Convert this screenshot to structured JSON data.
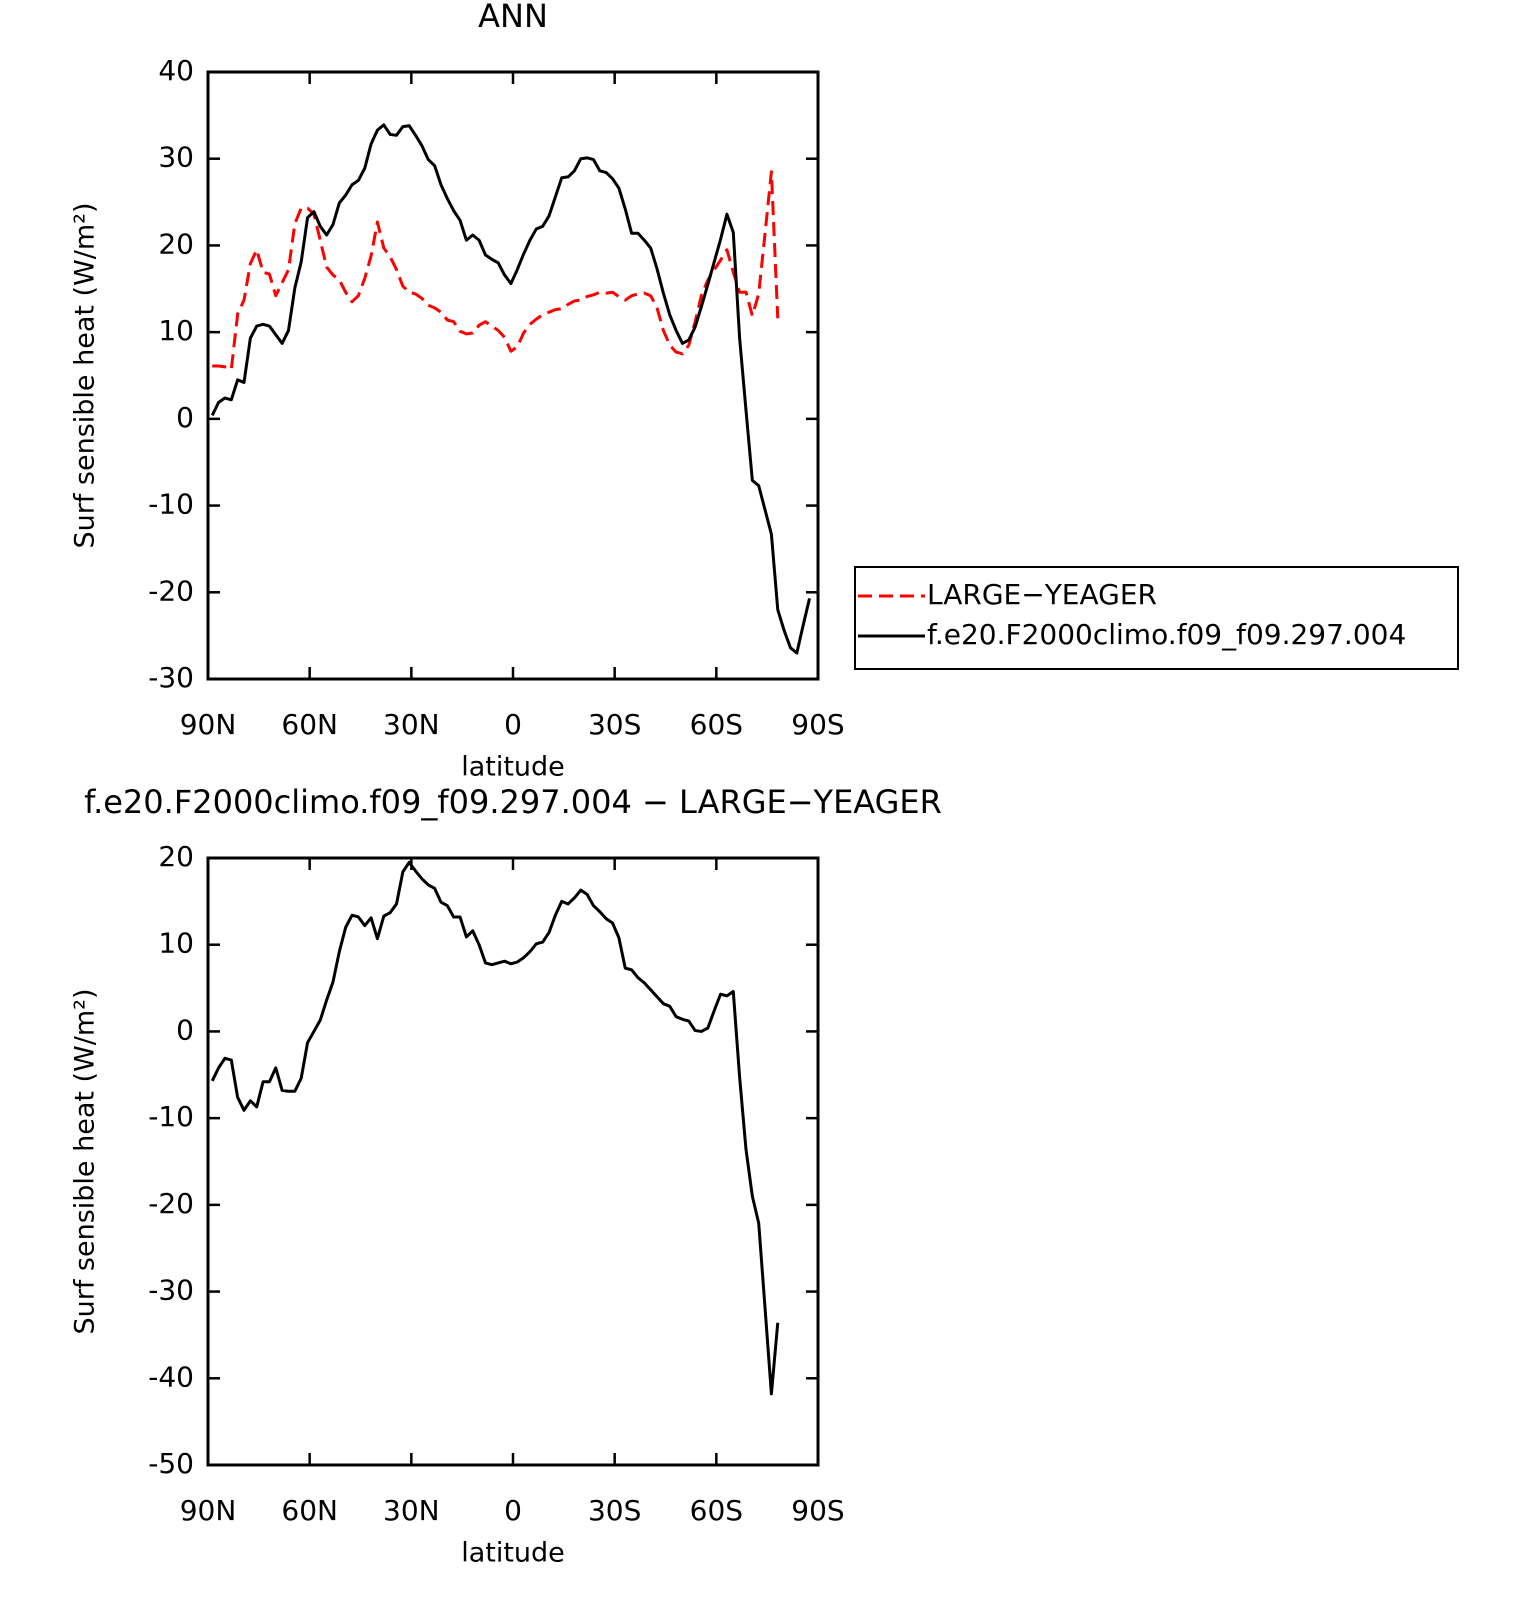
{
  "chart_data": [
    {
      "type": "line",
      "title": "ANN",
      "xlabel": "latitude",
      "ylabel": "Surf sensible heat (W/m²)",
      "xlim": [
        90,
        -90
      ],
      "xticks": [
        {
          "value": 90,
          "label": "90N"
        },
        {
          "value": 60,
          "label": "60N"
        },
        {
          "value": 30,
          "label": "30N"
        },
        0,
        {
          "value": -30,
          "label": "30S"
        },
        {
          "value": -60,
          "label": "60S"
        },
        {
          "value": -90,
          "label": "90S"
        }
      ],
      "ylim": [
        -30,
        40
      ],
      "yticks": [
        -30,
        -20,
        -10,
        0,
        10,
        20,
        30,
        40
      ],
      "legend": "right",
      "x": [
        88.75,
        86.875,
        85,
        83.125,
        81.25,
        79.375,
        77.5,
        75.625,
        73.75,
        71.875,
        70,
        68.125,
        66.25,
        64.375,
        62.5,
        60.625,
        58.75,
        56.875,
        55,
        53.125,
        51.25,
        49.375,
        47.5,
        45.625,
        43.75,
        41.875,
        40,
        38.125,
        36.25,
        34.375,
        32.5,
        30.625,
        28.75,
        26.875,
        25,
        23.125,
        21.25,
        19.375,
        17.5,
        15.625,
        13.75,
        11.875,
        10,
        8.125,
        6.25,
        4.375,
        2.5,
        0.625,
        -1.25,
        -3.125,
        -5,
        -6.875,
        -8.75,
        -10.625,
        -12.5,
        -14.375,
        -16.25,
        -18.125,
        -20,
        -21.875,
        -23.75,
        -25.625,
        -27.5,
        -29.375,
        -31.25,
        -33.125,
        -35,
        -36.875,
        -38.75,
        -40.625,
        -42.5,
        -44.375,
        -46.25,
        -48.125,
        -50,
        -51.875,
        -53.75,
        -55.625,
        -57.5,
        -59.375,
        -61.25,
        -63.125,
        -65,
        -66.875,
        -68.75,
        -70.625,
        -72.5,
        -74.375,
        -76.25,
        -78.125,
        -80,
        -81.875,
        -83.75,
        -85.625,
        -87.5
      ],
      "series": [
        {
          "name": "LARGE−YEAGER",
          "color": "#ff0000",
          "linestyle": "dashed",
          "values": [
            6.1,
            6.1,
            6,
            5.7,
            12.1,
            13.7,
            17.9,
            19.5,
            16.9,
            16.7,
            14.2,
            15.7,
            17.2,
            22.5,
            24.3,
            24.3,
            23.6,
            20.6,
            17.5,
            16.6,
            16,
            14.6,
            13.5,
            14.2,
            16.2,
            18.8,
            22.7,
            19.7,
            18.7,
            17.2,
            15.3,
            14.6,
            14.4,
            13.9,
            13.1,
            12.8,
            12.3,
            11.4,
            11.2,
            10.1,
            9.8,
            9.9,
            10.8,
            11.2,
            10.7,
            10.2,
            9.4,
            7.8,
            8.3,
            9.9,
            10.9,
            11.5,
            12,
            12.3,
            12.6,
            12.7,
            13.2,
            13.6,
            13.7,
            14.1,
            14.3,
            14.6,
            14.5,
            14.6,
            14.1,
            13.7,
            14.2,
            14.4,
            14.5,
            14.2,
            12.8,
            10.2,
            8.5,
            7.7,
            7.5,
            8.5,
            11.2,
            14.3,
            16,
            17.2,
            18.3,
            19.5,
            16.9,
            14.6,
            14.6,
            11.9,
            14.4,
            21.4,
            28.5,
            11.6,
            null,
            null,
            null,
            null,
            null
          ]
        },
        {
          "name": "f.e20.F2000climo.f09_f09.297.004",
          "color": "#000000",
          "linestyle": "solid",
          "values": [
            0.4,
            1.9,
            2.4,
            2.2,
            4.5,
            4.2,
            9.3,
            10.7,
            10.9,
            10.7,
            9.7,
            8.7,
            10.2,
            15.1,
            18.1,
            23.2,
            23.9,
            22.2,
            21.2,
            22.4,
            24.9,
            25.8,
            27,
            27.5,
            28.9,
            31.7,
            33.3,
            33.9,
            32.8,
            32.7,
            33.7,
            33.8,
            32.7,
            31.5,
            29.9,
            29.2,
            27,
            25.4,
            24,
            22.9,
            20.6,
            21.2,
            20.6,
            18.9,
            18.4,
            18,
            16.6,
            15.6,
            17.2,
            19,
            20.6,
            21.9,
            22.2,
            23.4,
            25.6,
            27.8,
            27.9,
            28.6,
            30,
            30.1,
            29.9,
            28.6,
            28.4,
            27.7,
            26.6,
            24.2,
            21.4,
            21.4,
            20.6,
            19.7,
            17.3,
            14.5,
            12,
            10.2,
            8.7,
            9.1,
            10.6,
            13,
            15.5,
            18.1,
            20.7,
            23.6,
            21.5,
            9.3,
            1,
            -7.1,
            -7.7,
            -10.5,
            -13.3,
            -22,
            -24.4,
            -26.4,
            -27,
            -23.8,
            -20.7
          ]
        }
      ]
    },
    {
      "type": "line",
      "title": "f.e20.F2000climo.f09_f09.297.004 − LARGE−YEAGER",
      "xlabel": "latitude",
      "ylabel": "Surf sensible heat (W/m²)",
      "xlim": [
        90,
        -90
      ],
      "xticks": [
        {
          "value": 90,
          "label": "90N"
        },
        {
          "value": 60,
          "label": "60N"
        },
        {
          "value": 30,
          "label": "30N"
        },
        0,
        {
          "value": -30,
          "label": "30S"
        },
        {
          "value": -60,
          "label": "60S"
        },
        {
          "value": -90,
          "label": "90S"
        }
      ],
      "ylim": [
        -50,
        20
      ],
      "yticks": [
        -50,
        -40,
        -30,
        -20,
        -10,
        0,
        10,
        20
      ],
      "x": [
        88.75,
        86.875,
        85,
        83.125,
        81.25,
        79.375,
        77.5,
        75.625,
        73.75,
        71.875,
        70,
        68.125,
        66.25,
        64.375,
        62.5,
        60.625,
        58.75,
        56.875,
        55,
        53.125,
        51.25,
        49.375,
        47.5,
        45.625,
        43.75,
        41.875,
        40,
        38.125,
        36.25,
        34.375,
        32.5,
        30.625,
        28.75,
        26.875,
        25,
        23.125,
        21.25,
        19.375,
        17.5,
        15.625,
        13.75,
        11.875,
        10,
        8.125,
        6.25,
        4.375,
        2.5,
        0.625,
        -1.25,
        -3.125,
        -5,
        -6.875,
        -8.75,
        -10.625,
        -12.5,
        -14.375,
        -16.25,
        -18.125,
        -20,
        -21.875,
        -23.75,
        -25.625,
        -27.5,
        -29.375,
        -31.25,
        -33.125,
        -35,
        -36.875,
        -38.75,
        -40.625,
        -42.5,
        -44.375,
        -46.25,
        -48.125,
        -50,
        -51.875,
        -53.75,
        -55.625,
        -57.5,
        -59.375,
        -61.25,
        -63.125,
        -65,
        -66.875,
        -68.75,
        -70.625,
        -72.5,
        -74.375,
        -76.25,
        -78.125,
        -80,
        -81.875,
        -83.75,
        -85.625,
        -87.5
      ],
      "series": [
        {
          "color": "#000000",
          "linestyle": "solid",
          "values": [
            -5.7,
            -4.2,
            -3.1,
            -3.3,
            -7.6,
            -9.1,
            -8,
            -8.7,
            -5.8,
            -5.8,
            -4.2,
            -6.8,
            -6.9,
            -6.9,
            -5.4,
            -1.3,
            0,
            1.3,
            3.6,
            5.7,
            9.2,
            12,
            13.4,
            13.2,
            12.2,
            13.1,
            10.7,
            13.3,
            13.7,
            14.7,
            18.4,
            19.5,
            18.5,
            17.6,
            16.9,
            16.5,
            14.9,
            14.5,
            13.2,
            13.2,
            10.9,
            11.6,
            10,
            7.9,
            7.7,
            7.9,
            8.1,
            7.8,
            8,
            8.5,
            9.2,
            10.1,
            10.3,
            11.4,
            13.4,
            15,
            14.7,
            15.4,
            16.3,
            15.8,
            14.5,
            13.8,
            13,
            12.5,
            10.8,
            7.3,
            7.1,
            6.2,
            5.6,
            4.8,
            4,
            3.2,
            2.9,
            1.7,
            1.4,
            1.2,
            0.1,
            0,
            0.4,
            2.4,
            4.3,
            4.1,
            4.6,
            -5.3,
            -13.6,
            -19,
            -22.1,
            -31.9,
            -41.8,
            -33.6,
            null,
            null,
            null,
            null,
            null
          ]
        }
      ]
    }
  ]
}
